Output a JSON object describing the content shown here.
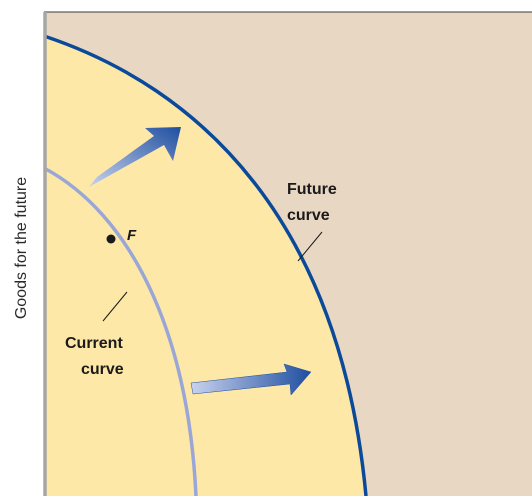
{
  "figure": {
    "y_axis_label": "Goods for the future",
    "point_label": "F",
    "current_curve_label_line1": "Current",
    "current_curve_label_line2": "curve",
    "future_curve_label_line1": "Future",
    "future_curve_label_line2": "curve"
  },
  "colors": {
    "outer_background": "#e8d8c3",
    "inner_region": "#fde8a8",
    "future_curve": "#0b4a9a",
    "current_curve": "#9aa6d6",
    "axis": "#a6a6a6",
    "arrow_dark": "#1f4fa0",
    "arrow_light": "#c9d2ee",
    "point": "#1a1a1a"
  }
}
